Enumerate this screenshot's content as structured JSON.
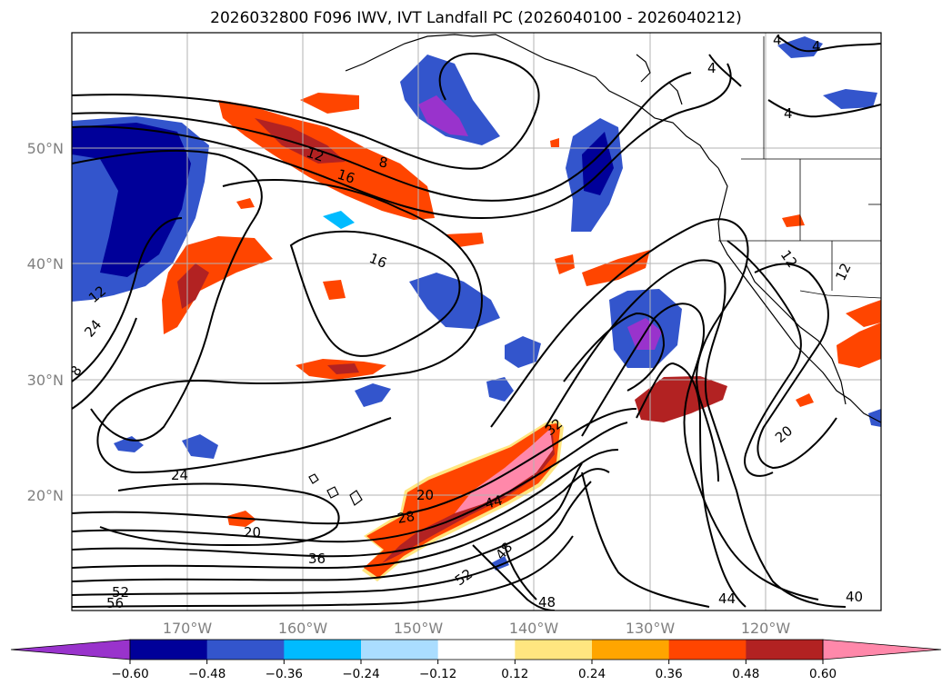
{
  "chart_data": {
    "type": "heatmap",
    "title": "2026032800 F096 IWV, IVT Landfall PC (2026040100 - 2026040212)",
    "map": {
      "lon_range": [
        -180,
        -110
      ],
      "lat_range": [
        10,
        60
      ],
      "x_ticks": [
        "170°W",
        "160°W",
        "150°W",
        "140°W",
        "130°W",
        "120°W"
      ],
      "y_ticks": [
        "20°N",
        "30°N",
        "40°N",
        "50°N"
      ],
      "grid": true
    },
    "colorbar": {
      "levels": [
        "−0.60",
        "−0.48",
        "−0.36",
        "−0.24",
        "−0.12",
        "0.12",
        "0.24",
        "0.36",
        "0.48",
        "0.60"
      ],
      "colors": [
        "#9933cc",
        "#000099",
        "#3355cc",
        "#00bbff",
        "#aaddff",
        "#ffffff",
        "#ffe680",
        "#ffa500",
        "#ff4500",
        "#b22222",
        "#ff88aa"
      ],
      "extend": "both"
    },
    "contour_labels": [
      "4",
      "4",
      "4",
      "4",
      "8",
      "12",
      "16",
      "16",
      "12",
      "24",
      "8",
      "12",
      "24",
      "20",
      "20",
      "28",
      "44",
      "32",
      "36",
      "48",
      "52",
      "52",
      "56",
      "48",
      "44",
      "40",
      "20"
    ]
  }
}
